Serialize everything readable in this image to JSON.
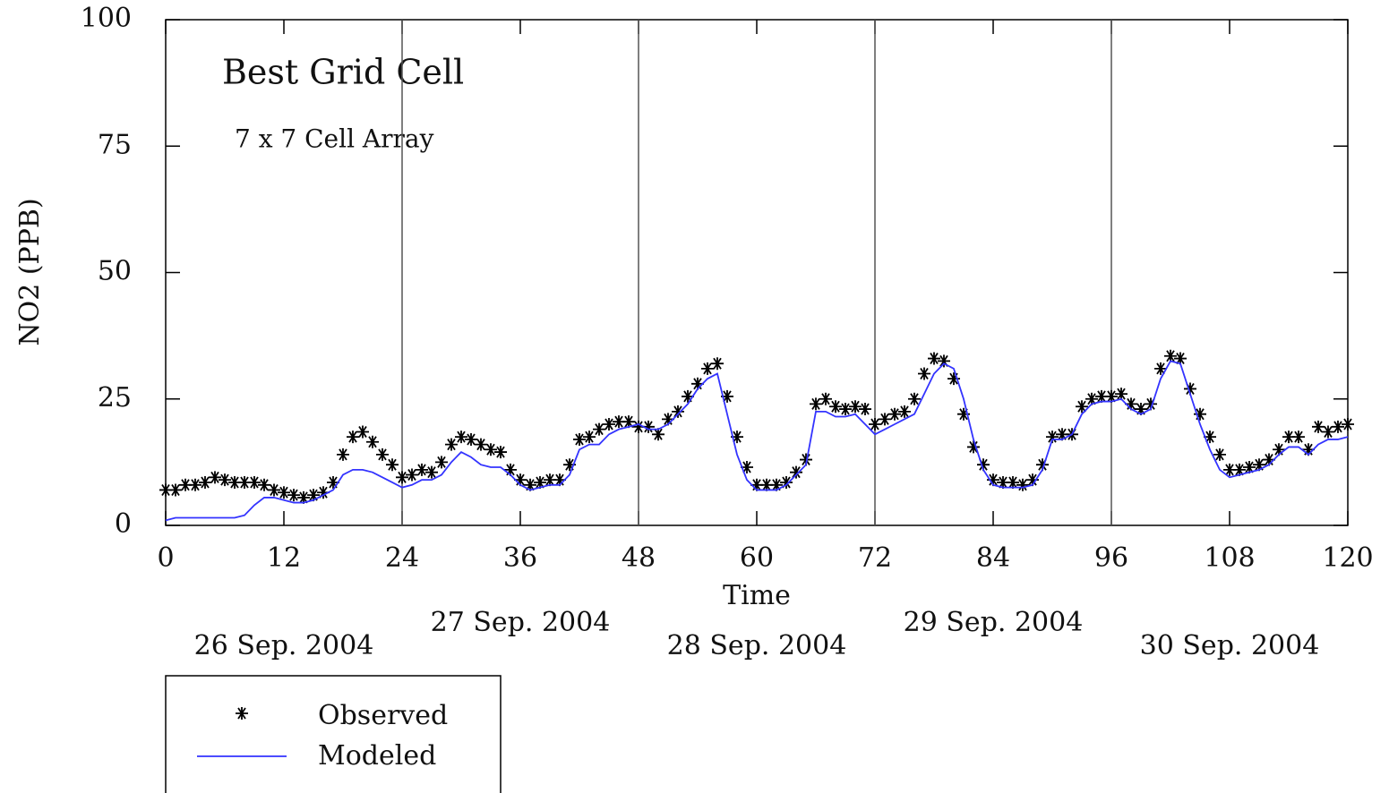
{
  "chart_data": {
    "type": "line",
    "annotations": [
      "Best Grid Cell",
      "7 x  7 Cell Array"
    ],
    "x_label": "Time",
    "y_label": "NO2 (PPB)",
    "xlim": [
      0,
      120
    ],
    "xticks": [
      0,
      12,
      24,
      36,
      48,
      60,
      72,
      84,
      96,
      108,
      120
    ],
    "ylim": [
      0,
      100
    ],
    "yticks": [
      0,
      25,
      50,
      75,
      100
    ],
    "day_lines": [
      24,
      48,
      72,
      96
    ],
    "dates": [
      "26 Sep. 2004",
      "27 Sep. 2004",
      "28 Sep. 2004",
      "29 Sep. 2004",
      "30 Sep. 2004"
    ],
    "x": [
      0,
      1,
      2,
      3,
      4,
      5,
      6,
      7,
      8,
      9,
      10,
      11,
      12,
      13,
      14,
      15,
      16,
      17,
      18,
      19,
      20,
      21,
      22,
      23,
      24,
      25,
      26,
      27,
      28,
      29,
      30,
      31,
      32,
      33,
      34,
      35,
      36,
      37,
      38,
      39,
      40,
      41,
      42,
      43,
      44,
      45,
      46,
      47,
      48,
      49,
      50,
      51,
      52,
      53,
      54,
      55,
      56,
      57,
      58,
      59,
      60,
      61,
      62,
      63,
      64,
      65,
      66,
      67,
      68,
      69,
      70,
      71,
      72,
      73,
      74,
      75,
      76,
      77,
      78,
      79,
      80,
      81,
      82,
      83,
      84,
      85,
      86,
      87,
      88,
      89,
      90,
      91,
      92,
      93,
      94,
      95,
      96,
      97,
      98,
      99,
      100,
      101,
      102,
      103,
      104,
      105,
      106,
      107,
      108,
      109,
      110,
      111,
      112,
      113,
      114,
      115,
      116,
      117,
      118,
      119,
      120
    ],
    "series": [
      {
        "name": "Observed",
        "color": "#000000",
        "marker": "asterisk",
        "values": [
          7,
          7,
          8,
          8,
          8.5,
          9.5,
          9,
          8.5,
          8.5,
          8.5,
          8,
          7,
          6.5,
          6,
          5.5,
          6,
          6.5,
          8.5,
          14,
          17.5,
          18.5,
          16.5,
          14,
          12,
          9.5,
          10,
          11,
          10.5,
          12.5,
          16,
          17.5,
          17,
          16,
          15,
          14.5,
          11,
          9,
          8,
          8.5,
          9,
          9,
          12,
          17,
          17.5,
          19,
          20,
          20.5,
          20.5,
          19.5,
          19.5,
          18,
          21,
          22.5,
          25.5,
          28,
          31,
          32,
          25.5,
          17.5,
          11.5,
          8,
          8,
          8,
          8.5,
          10.5,
          13,
          24,
          25,
          23.5,
          23,
          23.5,
          23,
          20,
          21,
          22,
          22.5,
          25,
          30,
          33,
          32.5,
          29,
          22,
          15.5,
          12,
          9,
          8.5,
          8.5,
          8,
          9,
          12,
          17.5,
          18,
          18,
          23.5,
          25,
          25.5,
          25.5,
          26,
          24,
          23,
          24,
          31,
          33.5,
          33,
          27,
          22,
          17.5,
          14,
          11,
          11,
          11.5,
          12,
          13,
          15,
          17.5,
          17.5,
          15,
          19.5,
          18.5,
          19.5,
          20
        ]
      },
      {
        "name": "Modeled",
        "color": "#3333ff",
        "marker": "line",
        "values": [
          1,
          1.5,
          1.5,
          1.5,
          1.5,
          1.5,
          1.5,
          1.5,
          2,
          4,
          5.5,
          5.5,
          5,
          4.5,
          4.5,
          5,
          6,
          7,
          10,
          11,
          11,
          10.5,
          9.5,
          8.5,
          7.5,
          8,
          9,
          9,
          10,
          12.5,
          14.5,
          13.5,
          12,
          11.5,
          11.5,
          10,
          8,
          7,
          7.5,
          8,
          8,
          10,
          15,
          16,
          16,
          18,
          19,
          19.5,
          20,
          19,
          19,
          20,
          22,
          24,
          27,
          29,
          30,
          22,
          14,
          9,
          7,
          7,
          7,
          8,
          10,
          12,
          22.5,
          22.5,
          21.5,
          21.5,
          22,
          20,
          18,
          19,
          20,
          21,
          22,
          26,
          30,
          32,
          31,
          25,
          17,
          11,
          8,
          7.5,
          7.5,
          7.5,
          8,
          11,
          17,
          17,
          18,
          22,
          24,
          24.5,
          24.5,
          25,
          23,
          22,
          23,
          29,
          32.5,
          32,
          26,
          20,
          15,
          11,
          9.5,
          10,
          10.5,
          11,
          12,
          14,
          15.5,
          15.5,
          14,
          16,
          17,
          17,
          17.5
        ]
      }
    ]
  }
}
